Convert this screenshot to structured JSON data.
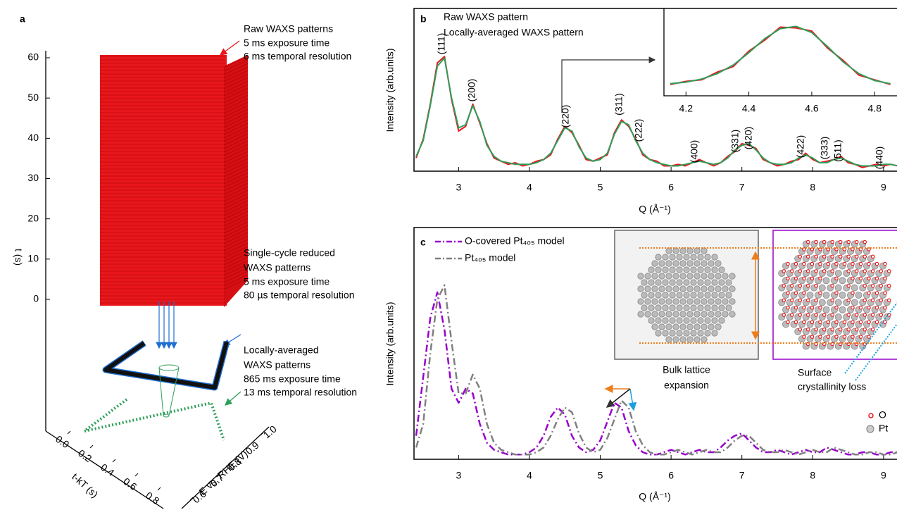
{
  "chart_data": [
    {
      "type": "3d",
      "panel": "a",
      "zlabel": "t (s)",
      "zlim": [
        0,
        60
      ],
      "zticks": [
        0,
        10,
        20,
        30,
        40,
        50,
        60
      ],
      "xlabel": "t-kT (s)",
      "xlim": [
        0,
        0.8
      ],
      "xticks": [
        {
          "value": 0,
          "label": "0.0"
        },
        0.2,
        0.4,
        0.6,
        0.8
      ],
      "ylabel": "E vs. RHE (V)",
      "ylim": [
        0.6,
        1.0
      ],
      "yticks": [
        0.6,
        0.7,
        0.8,
        0.9,
        {
          "value": 1,
          "label": "1.0"
        }
      ],
      "annotations": [
        {
          "color": "#e8171c",
          "title": [
            "Raw WAXS patterns"
          ],
          "lines": [
            "5 ms exposure time",
            "6 ms temporal resolution"
          ]
        },
        {
          "color": "#1f6fd1",
          "title": [
            "Single-cycle reduced",
            "WAXS patterns"
          ],
          "lines": [
            "5 ms exposure time",
            "80 µs temporal resolution"
          ]
        },
        {
          "color": "#2e9e5b",
          "title": [
            "Locally-averaged",
            "WAXS patterns"
          ],
          "lines": [
            "865 ms exposure time",
            "13 ms temporal resolution"
          ]
        }
      ]
    },
    {
      "type": "line",
      "panel": "b",
      "xlabel": "Q (Å⁻¹)",
      "ylabel": "Intensity (arb.units)",
      "xlim": [
        2.37,
        9.23
      ],
      "xticks": [
        3,
        4,
        5,
        6,
        7,
        8,
        9
      ],
      "ylim": [
        0,
        100
      ],
      "x": [
        2.4,
        2.5,
        2.6,
        2.7,
        2.8,
        2.9,
        3.0,
        3.1,
        3.2,
        3.3,
        3.4,
        3.5,
        3.6,
        3.7,
        3.8,
        3.9,
        4.0,
        4.1,
        4.2,
        4.3,
        4.4,
        4.5,
        4.6,
        4.7,
        4.8,
        4.9,
        5.0,
        5.1,
        5.2,
        5.3,
        5.4,
        5.5,
        5.6,
        5.7,
        5.8,
        5.9,
        6.0,
        6.1,
        6.2,
        6.3,
        6.4,
        6.5,
        6.6,
        6.7,
        6.8,
        6.9,
        7.0,
        7.1,
        7.2,
        7.3,
        7.4,
        7.5,
        7.6,
        7.7,
        7.8,
        7.9,
        8.0,
        8.1,
        8.2,
        8.3,
        8.4,
        8.5,
        8.6,
        8.7,
        8.8,
        8.9,
        9.0,
        9.1,
        9.2,
        9.3
      ],
      "series": [
        {
          "name": "Raw WAXS pattern",
          "color": "#e8171c",
          "values": [
            7,
            19,
            41,
            67,
            71,
            44,
            24,
            27,
            41,
            29,
            16,
            7,
            5,
            3,
            4,
            2,
            3,
            5,
            6,
            9,
            19,
            27,
            23,
            15,
            6,
            5,
            7,
            9,
            23,
            31,
            27,
            19,
            9,
            6,
            5,
            2,
            2,
            3,
            2,
            4,
            6,
            4,
            2,
            4,
            8,
            11,
            16,
            15,
            13,
            6,
            4,
            2,
            3,
            5,
            6,
            10,
            6,
            4,
            5,
            6,
            8,
            4,
            3,
            1,
            2,
            3,
            2,
            3,
            2,
            1
          ]
        },
        {
          "name": "Locally-averaged WAXS pattern",
          "color": "#2e9e5b",
          "values": [
            8,
            18,
            40,
            65,
            70,
            45,
            26,
            28,
            40,
            30,
            15,
            8,
            5,
            4,
            3,
            3,
            3,
            4,
            6,
            10,
            18,
            26,
            24,
            14,
            7,
            5,
            6,
            10,
            22,
            30,
            28,
            18,
            10,
            6,
            4,
            3,
            2,
            2,
            3,
            4,
            5,
            4,
            3,
            4,
            7,
            12,
            15,
            16,
            12,
            7,
            4,
            3,
            3,
            4,
            7,
            9,
            7,
            4,
            4,
            6,
            7,
            5,
            3,
            2,
            2,
            2,
            3,
            3,
            2,
            2
          ]
        }
      ],
      "peak_labels": [
        "(111)",
        "(200)",
        "(220)",
        "(311)",
        "(222)",
        "(400)",
        "(331)",
        "(420)",
        "(422)",
        "(333)",
        "(511)",
        "(440)"
      ]
    },
    {
      "type": "line",
      "xlim": [
        4.13,
        4.88
      ],
      "xticks": [
        4.2,
        4.4,
        4.6,
        4.8
      ],
      "ylim": [
        0,
        100
      ],
      "x": [
        4.15,
        4.2,
        4.25,
        4.3,
        4.35,
        4.4,
        4.45,
        4.5,
        4.55,
        4.6,
        4.65,
        4.7,
        4.75,
        4.8,
        4.85
      ],
      "series": [
        {
          "color": "#e8171c",
          "values": [
            11,
            15,
            17,
            27,
            34,
            54,
            68,
            85,
            84,
            80,
            58,
            42,
            23,
            17,
            11
          ]
        },
        {
          "color": "#2e9e5b",
          "values": [
            12,
            14,
            18,
            25,
            36,
            52,
            70,
            83,
            86,
            78,
            60,
            40,
            25,
            16,
            12
          ]
        }
      ]
    },
    {
      "type": "line",
      "panel": "c",
      "xlabel": "Q (Å⁻¹)",
      "ylabel": "Intensity (arb.units)",
      "xlim": [
        2.37,
        9.23
      ],
      "xticks": [
        3,
        4,
        5,
        6,
        7,
        8,
        9
      ],
      "ylim": [
        0,
        100
      ],
      "dashed": true,
      "x": [
        2.4,
        2.5,
        2.6,
        2.7,
        2.8,
        2.9,
        3.0,
        3.1,
        3.2,
        3.3,
        3.4,
        3.5,
        3.6,
        3.7,
        3.8,
        3.9,
        4.0,
        4.1,
        4.2,
        4.3,
        4.4,
        4.5,
        4.6,
        4.7,
        4.8,
        4.9,
        5.0,
        5.1,
        5.2,
        5.3,
        5.4,
        5.5,
        5.6,
        5.7,
        5.8,
        5.9,
        6.0,
        6.1,
        6.2,
        6.3,
        6.4,
        6.5,
        6.6,
        6.7,
        6.8,
        6.9,
        7.0,
        7.1,
        7.2,
        7.3,
        7.4,
        7.5,
        7.6,
        7.7,
        7.8,
        7.9,
        8.0,
        8.1,
        8.2,
        8.3,
        8.4,
        8.5,
        8.6,
        8.7,
        8.8,
        8.9,
        9.0,
        9.1,
        9.2,
        9.3
      ],
      "series": [
        {
          "name": "O-covered Pt₄₀₅ model",
          "color": "#9900cc",
          "values": [
            10,
            35,
            60,
            71,
            55,
            30,
            24,
            30,
            28,
            15,
            7,
            4,
            3,
            2,
            2,
            2,
            3,
            5,
            10,
            18,
            22,
            19,
            10,
            5,
            3,
            4,
            8,
            16,
            24,
            22,
            12,
            6,
            3,
            2,
            2,
            3,
            4,
            3,
            2,
            3,
            4,
            3,
            3,
            5,
            8,
            10,
            11,
            8,
            5,
            3,
            3,
            4,
            3,
            2,
            3,
            4,
            3,
            3,
            5,
            4,
            3,
            2,
            2,
            3,
            3,
            2,
            2,
            3,
            3,
            2
          ]
        },
        {
          "name": "Pt₄₀₅ model",
          "color": "#808080",
          "values": [
            5,
            15,
            45,
            68,
            74,
            50,
            28,
            28,
            36,
            30,
            15,
            7,
            4,
            3,
            2,
            2,
            2,
            3,
            5,
            10,
            17,
            22,
            20,
            11,
            5,
            3,
            4,
            9,
            17,
            25,
            22,
            12,
            6,
            3,
            2,
            2,
            3,
            4,
            3,
            2,
            3,
            4,
            3,
            3,
            5,
            8,
            10,
            10,
            7,
            4,
            3,
            3,
            4,
            3,
            2,
            3,
            4,
            3,
            3,
            5,
            4,
            3,
            2,
            2,
            3,
            3,
            2,
            2,
            3,
            3
          ]
        }
      ],
      "inset_labels": {
        "bulk": [
          "Bulk lattice",
          "expansion"
        ],
        "surface": [
          "Surface",
          "crystallinity loss"
        ],
        "atoms": [
          "O",
          "Pt"
        ]
      }
    }
  ]
}
